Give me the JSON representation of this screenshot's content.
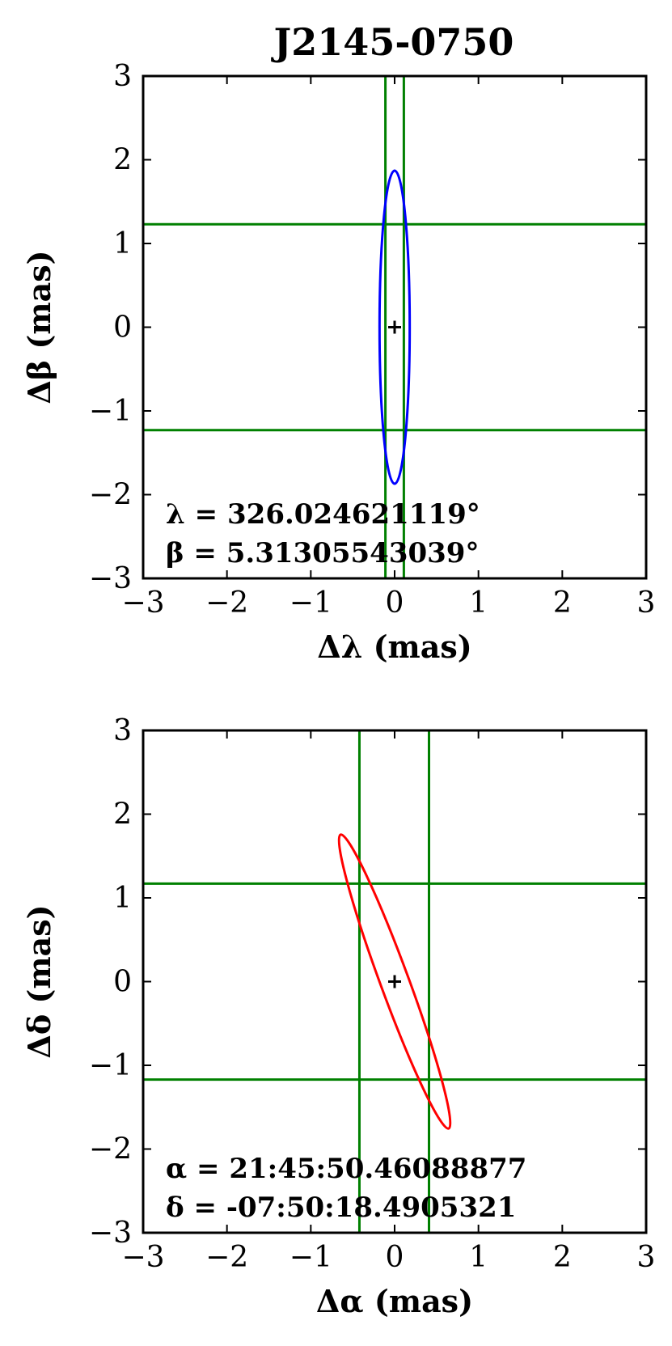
{
  "chart_data": [
    {
      "type": "scatter",
      "title": "J2145-0750",
      "xlabel": "Δλ (mas)",
      "ylabel": "Δβ (mas)",
      "xlim": [
        -3,
        3
      ],
      "ylim": [
        -3,
        3
      ],
      "xticks": [
        "−3",
        "−2",
        "−1",
        "0",
        "1",
        "2",
        "3"
      ],
      "yticks": [
        "−3",
        "−2",
        "−1",
        "0",
        "1",
        "2",
        "3"
      ],
      "grid": false,
      "center_marker": {
        "x": 0,
        "y": 0,
        "symbol": "+"
      },
      "ellipse": {
        "cx": 0,
        "cy": 0,
        "semi_x": 0.18,
        "semi_y": 1.87,
        "angle_deg": 0,
        "color": "#0000ff"
      },
      "vlines": [
        -0.11,
        0.11
      ],
      "hlines": [
        1.23,
        -1.23
      ],
      "line_color": "#008000",
      "annotations": [
        "λ = 326.024621119°",
        "β = 5.31305543039°"
      ]
    },
    {
      "type": "scatter",
      "title": "",
      "xlabel": "Δα (mas)",
      "ylabel": "Δδ (mas)",
      "xlim": [
        -3,
        3
      ],
      "ylim": [
        -3,
        3
      ],
      "xticks": [
        "−3",
        "−2",
        "−1",
        "0",
        "1",
        "2",
        "3"
      ],
      "yticks": [
        "−3",
        "−2",
        "−1",
        "0",
        "1",
        "2",
        "3"
      ],
      "grid": false,
      "center_marker": {
        "x": 0,
        "y": 0,
        "symbol": "+"
      },
      "ellipse": {
        "cx": 0,
        "cy": 0,
        "semi_x": 0.17,
        "semi_y": 1.87,
        "angle_deg": 20.2,
        "color": "#ff0000"
      },
      "vlines": [
        -0.42,
        0.41
      ],
      "hlines": [
        1.17,
        -1.17
      ],
      "line_color": "#008000",
      "annotations": [
        "α = 21:45:50.46088877",
        "δ = -07:50:18.4905321"
      ]
    }
  ]
}
